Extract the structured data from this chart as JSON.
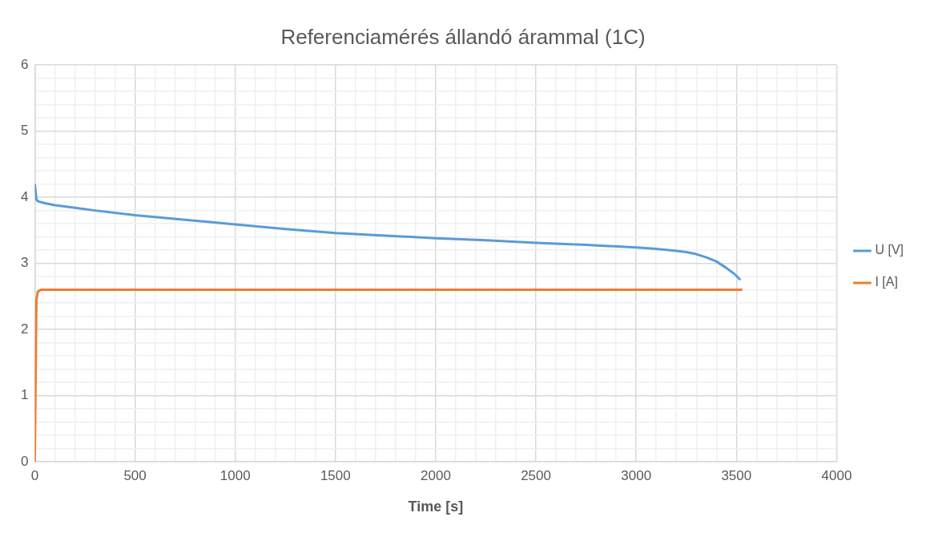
{
  "chart_data": {
    "type": "line",
    "title": "Referenciamérés állandó árammal (1C)",
    "xlabel": "Time [s]",
    "xlim": [
      0,
      4000
    ],
    "xticks": [
      0,
      {
        "value": 100,
        "label": null
      },
      {
        "value": 200,
        "label": null
      },
      {
        "value": 300,
        "label": null
      },
      {
        "value": 400,
        "label": null
      },
      500,
      {
        "value": 600,
        "label": null
      },
      {
        "value": 700,
        "label": null
      },
      {
        "value": 800,
        "label": null
      },
      {
        "value": 900,
        "label": null
      },
      1000,
      {
        "value": 1100,
        "label": null
      },
      {
        "value": 1200,
        "label": null
      },
      {
        "value": 1300,
        "label": null
      },
      {
        "value": 1400,
        "label": null
      },
      1500,
      {
        "value": 1600,
        "label": null
      },
      {
        "value": 1700,
        "label": null
      },
      {
        "value": 1800,
        "label": null
      },
      {
        "value": 1900,
        "label": null
      },
      2000,
      {
        "value": 2100,
        "label": null
      },
      {
        "value": 2200,
        "label": null
      },
      {
        "value": 2300,
        "label": null
      },
      {
        "value": 2400,
        "label": null
      },
      2500,
      {
        "value": 2600,
        "label": null
      },
      {
        "value": 2700,
        "label": null
      },
      {
        "value": 2800,
        "label": null
      },
      {
        "value": 2900,
        "label": null
      },
      3000,
      {
        "value": 3100,
        "label": null
      },
      {
        "value": 3200,
        "label": null
      },
      {
        "value": 3300,
        "label": null
      },
      {
        "value": 3400,
        "label": null
      },
      3500,
      {
        "value": 3600,
        "label": null
      },
      {
        "value": 3700,
        "label": null
      },
      {
        "value": 3800,
        "label": null
      },
      {
        "value": 3900,
        "label": null
      },
      4000
    ],
    "ylim": [
      0,
      6
    ],
    "yticks": [
      0,
      {
        "value": 0.2,
        "label": null
      },
      {
        "value": 0.4,
        "label": null
      },
      {
        "value": 0.6,
        "label": null
      },
      {
        "value": 0.8,
        "label": null
      },
      1,
      {
        "value": 1.2,
        "label": null
      },
      {
        "value": 1.4,
        "label": null
      },
      {
        "value": 1.6,
        "label": null
      },
      {
        "value": 1.8,
        "label": null
      },
      2,
      {
        "value": 2.2,
        "label": null
      },
      {
        "value": 2.4,
        "label": null
      },
      {
        "value": 2.6,
        "label": null
      },
      {
        "value": 2.8,
        "label": null
      },
      3,
      {
        "value": 3.2,
        "label": null
      },
      {
        "value": 3.4,
        "label": null
      },
      {
        "value": 3.6,
        "label": null
      },
      {
        "value": 3.8,
        "label": null
      },
      4,
      {
        "value": 4.2,
        "label": null
      },
      {
        "value": 4.4,
        "label": null
      },
      {
        "value": 4.6,
        "label": null
      },
      {
        "value": 4.8,
        "label": null
      },
      5,
      {
        "value": 5.2,
        "label": null
      },
      {
        "value": 5.4,
        "label": null
      },
      {
        "value": 5.6,
        "label": null
      },
      {
        "value": 5.8,
        "label": null
      },
      6
    ],
    "grid": true,
    "legend": "right",
    "marker": "none",
    "series": [
      {
        "name": "U [V]",
        "color": "#5b9bd5",
        "x": [
          0,
          8,
          15,
          50,
          100,
          200,
          300,
          500,
          750,
          1000,
          1250,
          1500,
          1750,
          2000,
          2250,
          2500,
          2750,
          3000,
          3100,
          3200,
          3250,
          3300,
          3350,
          3400,
          3450,
          3490,
          3520
        ],
        "values": [
          4.2,
          3.97,
          3.94,
          3.91,
          3.88,
          3.84,
          3.8,
          3.73,
          3.66,
          3.59,
          3.52,
          3.46,
          3.42,
          3.38,
          3.35,
          3.31,
          3.28,
          3.24,
          3.22,
          3.19,
          3.17,
          3.14,
          3.09,
          3.03,
          2.93,
          2.84,
          2.75
        ]
      },
      {
        "name": "I [A]",
        "color": "#ed7d31",
        "x": [
          0,
          8,
          15,
          30,
          3530
        ],
        "values": [
          0,
          2.45,
          2.57,
          2.6,
          2.6
        ]
      }
    ]
  }
}
